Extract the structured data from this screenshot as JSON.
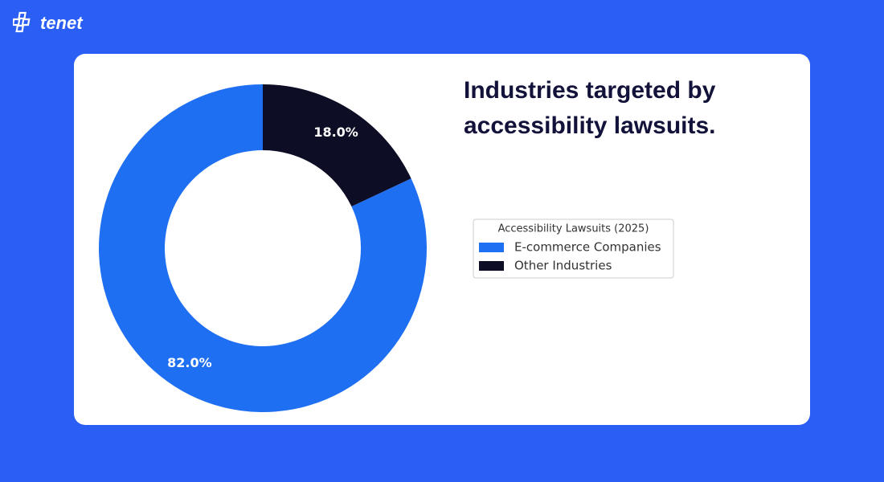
{
  "brand": "tenet",
  "chart_data": {
    "type": "pie",
    "donut": true,
    "title": "Industries targeted by accessibility lawsuits.",
    "legend_title": "Accessibility Lawsuits (2025)",
    "categories": [
      "E-commerce Companies",
      "Other Industries"
    ],
    "values": [
      82.0,
      18.0
    ],
    "value_labels": [
      "82.0%",
      "18.0%"
    ],
    "colors": [
      "#1f6ff2",
      "#0d0d26"
    ],
    "legend": "right"
  }
}
